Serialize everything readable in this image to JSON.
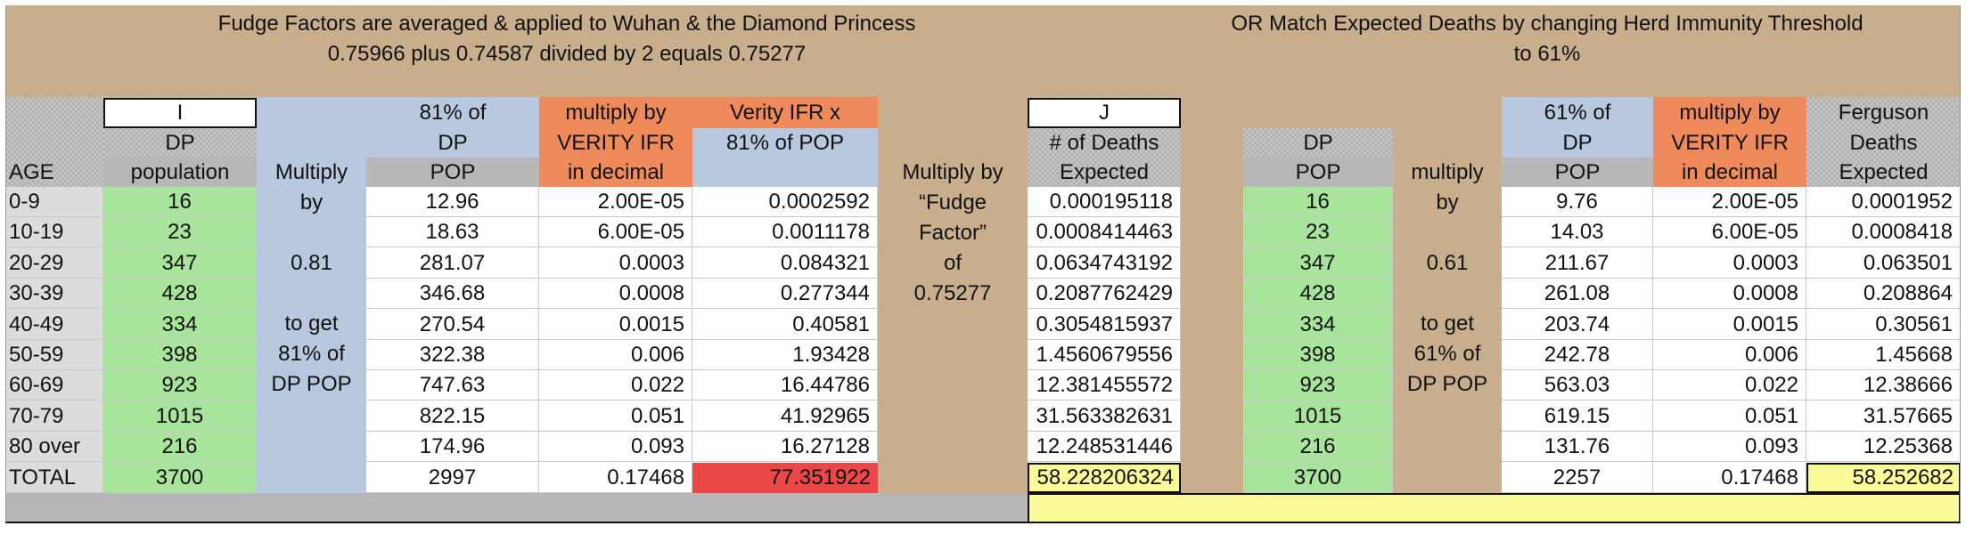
{
  "header": {
    "left_line1": "Fudge Factors are averaged & applied to Wuhan & the Diamond Princess",
    "left_line2": "0.75966  plus   0.74587 divided by 2 equals     0.75277",
    "right_line1": "OR   Match Expected Deaths by changing Herd Immunity Threshold",
    "right_line2": "to 61%"
  },
  "headers": {
    "label_I": "I",
    "label_J": "J",
    "age": "AGE",
    "dp_pop_1": "DP",
    "dp_pop_2": "population",
    "multiply": "Multiply",
    "pct81_1": "81% of",
    "pct81_2": "DP",
    "pct81_3": "POP",
    "mulverity_1": "multiply by",
    "mulverity_2": "VERITY IFR",
    "mulverity_3": "in decimal",
    "verityx_1": "Verity IFR x",
    "verityx_2": "81% of POP",
    "fudge_1": "Multiply by",
    "fudge_2": "“Fudge",
    "fudge_3": "Factor”",
    "fudge_4": "of",
    "fudge_5": "0.75277",
    "deaths_1": "# of Deaths",
    "deaths_2": "Expected",
    "dp2_1": "DP",
    "dp2_2": "POP",
    "multiply2": "multiply",
    "pct61_1": "61% of",
    "pct61_2": "DP",
    "pct61_3": "POP",
    "mulverity2_1": "multiply by",
    "mulverity2_2": "VERITY IFR",
    "mulverity2_3": "in decimal",
    "ferg_1": "Ferguson",
    "ferg_2": "Deaths",
    "ferg_3": "Expected"
  },
  "blue_notes_left": [
    "by",
    "",
    "0.81",
    "",
    "to get",
    "81% of",
    "DP POP"
  ],
  "blue_notes_right": [
    "by",
    "",
    "0.61",
    "",
    "to get",
    "61% of",
    "DP POP"
  ],
  "rows": [
    {
      "age": "0-9",
      "pop": "16",
      "p81": "12.96",
      "ifr": "2.00E-05",
      "vx": "0.0002592",
      "deaths": "0.000195118",
      "pop2": "16",
      "p61": "9.76",
      "ifr2": "2.00E-05",
      "ferg": "0.0001952"
    },
    {
      "age": "10-19",
      "pop": "23",
      "p81": "18.63",
      "ifr": "6.00E-05",
      "vx": "0.0011178",
      "deaths": "0.0008414463",
      "pop2": "23",
      "p61": "14.03",
      "ifr2": "6.00E-05",
      "ferg": "0.0008418"
    },
    {
      "age": "20-29",
      "pop": "347",
      "p81": "281.07",
      "ifr": "0.0003",
      "vx": "0.084321",
      "deaths": "0.0634743192",
      "pop2": "347",
      "p61": "211.67",
      "ifr2": "0.0003",
      "ferg": "0.063501"
    },
    {
      "age": "30-39",
      "pop": "428",
      "p81": "346.68",
      "ifr": "0.0008",
      "vx": "0.277344",
      "deaths": "0.2087762429",
      "pop2": "428",
      "p61": "261.08",
      "ifr2": "0.0008",
      "ferg": "0.208864"
    },
    {
      "age": "40-49",
      "pop": "334",
      "p81": "270.54",
      "ifr": "0.0015",
      "vx": "0.40581",
      "deaths": "0.3054815937",
      "pop2": "334",
      "p61": "203.74",
      "ifr2": "0.0015",
      "ferg": "0.30561"
    },
    {
      "age": "50-59",
      "pop": "398",
      "p81": "322.38",
      "ifr": "0.006",
      "vx": "1.93428",
      "deaths": "1.4560679556",
      "pop2": "398",
      "p61": "242.78",
      "ifr2": "0.006",
      "ferg": "1.45668"
    },
    {
      "age": "60-69",
      "pop": "923",
      "p81": "747.63",
      "ifr": "0.022",
      "vx": "16.44786",
      "deaths": "12.381455572",
      "pop2": "923",
      "p61": "563.03",
      "ifr2": "0.022",
      "ferg": "12.38666"
    },
    {
      "age": "70-79",
      "pop": "1015",
      "p81": "822.15",
      "ifr": "0.051",
      "vx": "41.92965",
      "deaths": "31.563382631",
      "pop2": "1015",
      "p61": "619.15",
      "ifr2": "0.051",
      "ferg": "31.57665"
    },
    {
      "age": "80 over",
      "pop": "216",
      "p81": "174.96",
      "ifr": "0.093",
      "vx": "16.27128",
      "deaths": "12.248531446",
      "pop2": "216",
      "p61": "131.76",
      "ifr2": "0.093",
      "ferg": "12.25368"
    }
  ],
  "total": {
    "age": "TOTAL",
    "pop": "3700",
    "p81": "2997",
    "ifr": "0.17468",
    "vx": "77.351922",
    "deaths": "58.228206324",
    "pop2": "3700",
    "p61": "2257",
    "ifr2": "0.17468",
    "ferg": "58.252682"
  }
}
